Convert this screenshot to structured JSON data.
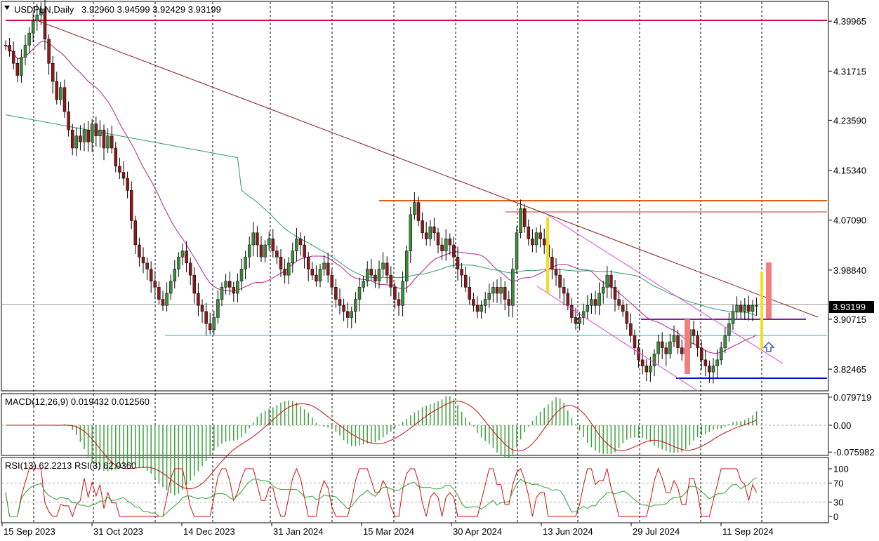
{
  "header": {
    "symbol_timeframe": "USDPLN,Daily",
    "ohlc": "3.92960 3.94599 3.92429 3.93199"
  },
  "price_badge": "3.93199",
  "chart_data": [
    {
      "type": "candlestick",
      "panel": "price",
      "y_ticks": [
        "4.39965",
        "4.31715",
        "4.23590",
        "4.15340",
        "4.07090",
        "3.98840",
        "3.90715",
        "3.82465"
      ],
      "ylim": [
        3.79,
        4.43
      ],
      "current_price": 3.93199,
      "colors": {
        "up": "#3c8c3c",
        "down": "#8b1a1a",
        "ma_fast": "#b0208e",
        "ma_slow": "#2e9e5e",
        "trend": "#8b1a1a",
        "channel": "#e040e0"
      },
      "closes": [
        4.36,
        4.35,
        4.33,
        4.31,
        4.34,
        4.36,
        4.38,
        4.4,
        4.41,
        4.42,
        4.37,
        4.33,
        4.3,
        4.27,
        4.29,
        4.25,
        4.22,
        4.19,
        4.21,
        4.2,
        4.22,
        4.2,
        4.23,
        4.21,
        4.22,
        4.19,
        4.21,
        4.19,
        4.16,
        4.15,
        4.14,
        4.12,
        4.07,
        4.03,
        4.01,
        4.0,
        3.99,
        3.97,
        3.96,
        3.94,
        3.93,
        3.95,
        3.97,
        3.99,
        4.01,
        4.02,
        4.0,
        3.98,
        3.95,
        3.93,
        3.92,
        3.9,
        3.89,
        3.91,
        3.94,
        3.96,
        3.97,
        3.96,
        3.95,
        3.97,
        3.99,
        4.01,
        4.03,
        4.05,
        4.03,
        4.01,
        4.03,
        4.04,
        4.02,
        4.01,
        3.99,
        3.98,
        4.0,
        4.02,
        4.04,
        4.03,
        4.01,
        3.99,
        3.98,
        3.97,
        3.99,
        4.0,
        3.98,
        3.96,
        3.94,
        3.93,
        3.92,
        3.91,
        3.92,
        3.94,
        3.96,
        3.97,
        3.99,
        3.98,
        3.97,
        3.99,
        4.0,
        3.98,
        3.96,
        3.94,
        3.93,
        3.97,
        4.02,
        4.08,
        4.1,
        4.07,
        4.05,
        4.04,
        4.06,
        4.05,
        4.03,
        4.02,
        4.04,
        4.03,
        4.01,
        3.99,
        3.98,
        3.96,
        3.94,
        3.93,
        3.92,
        3.93,
        3.94,
        3.95,
        3.96,
        3.95,
        3.96,
        3.94,
        3.93,
        3.99,
        4.05,
        4.09,
        4.06,
        4.04,
        4.03,
        4.05,
        4.04,
        4.03,
        4.01,
        3.99,
        3.98,
        3.96,
        3.95,
        3.93,
        3.91,
        3.9,
        3.91,
        3.92,
        3.93,
        3.94,
        3.93,
        3.95,
        3.96,
        3.98,
        3.96,
        3.94,
        3.93,
        3.92,
        3.9,
        3.88,
        3.86,
        3.84,
        3.83,
        3.82,
        3.83,
        3.85,
        3.87,
        3.86,
        3.85,
        3.87,
        3.88,
        3.86,
        3.85,
        3.86,
        3.89,
        3.88,
        3.86,
        3.84,
        3.83,
        3.82,
        3.83,
        3.84,
        3.86,
        3.88,
        3.9,
        3.92,
        3.93,
        3.92,
        3.93,
        3.92,
        3.93,
        3.93
      ]
    },
    {
      "type": "macd",
      "panel": "macd",
      "label": "MACD(12,26,9) 0.019432 0.012560",
      "y_ticks": [
        "0.079719",
        "0.00",
        "-0.075982"
      ],
      "ylim": [
        -0.0835,
        0.0875
      ]
    },
    {
      "type": "rsi",
      "panel": "rsi",
      "label": "RSI(13) 62.2213  RSI(3) 62.0360",
      "y_ticks": [
        "100",
        "70",
        "30",
        "0"
      ],
      "ylim": [
        0,
        100
      ]
    }
  ],
  "x_ticks": [
    "15 Sep 2023",
    "31 Oct 2023",
    "14 Dec 2023",
    "31 Jan 2024",
    "15 Mar 2024",
    "30 Apr 2024",
    "13 Jun 2024",
    "29 Jul 2024",
    "11 Sep 2024"
  ]
}
